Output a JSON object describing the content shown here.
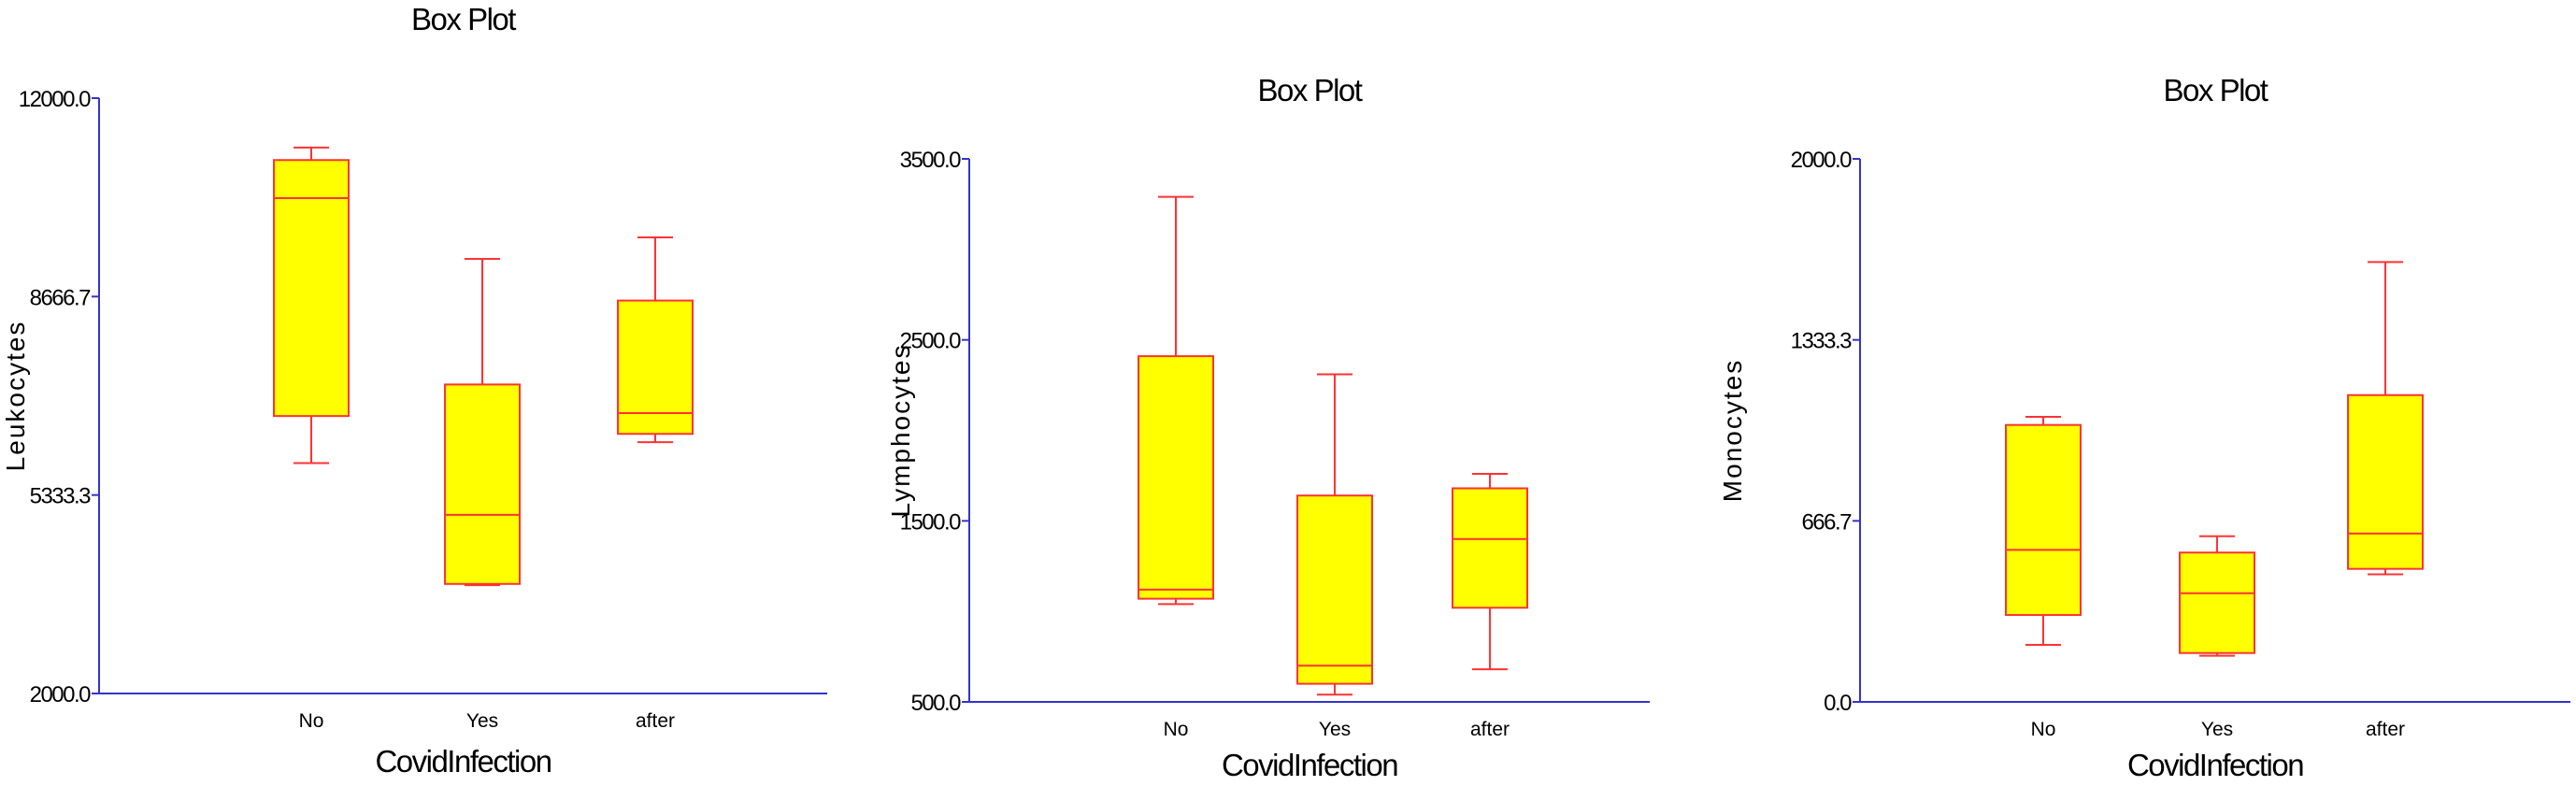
{
  "colors": {
    "axis": "#3333cc",
    "box_fill": "#ffff00",
    "box_stroke": "#ff3333",
    "text": "#000000"
  },
  "chart_data": [
    {
      "type": "box",
      "title": "Box Plot",
      "xlabel": "CovidInfection",
      "ylabel": "Leukocytes",
      "ylim": [
        2000.0,
        12000.0
      ],
      "yticks": [
        "12000.0",
        "8666.7",
        "5333.3",
        "2000.0"
      ],
      "categories": [
        "No",
        "Yes",
        "after"
      ],
      "boxes": [
        {
          "category": "No",
          "whisker_low": 5870,
          "q1": 6660,
          "median": 10320,
          "q3": 10960,
          "whisker_high": 11170
        },
        {
          "category": "Yes",
          "whisker_low": 3820,
          "q1": 3840,
          "median": 5000,
          "q3": 7190,
          "whisker_high": 9300
        },
        {
          "category": "after",
          "whisker_low": 6220,
          "q1": 6360,
          "median": 6710,
          "q3": 8600,
          "whisker_high": 9660
        }
      ],
      "grid": false
    },
    {
      "type": "box",
      "title": "Box Plot",
      "xlabel": "CovidInfection",
      "ylabel": "Lymphocytes",
      "ylim": [
        500.0,
        3500.0
      ],
      "yticks": [
        "3500.0",
        "2500.0",
        "1500.0",
        "500.0"
      ],
      "categories": [
        "No",
        "Yes",
        "after"
      ],
      "boxes": [
        {
          "category": "No",
          "whisker_low": 1040,
          "q1": 1070,
          "median": 1120,
          "q3": 2410,
          "whisker_high": 3290
        },
        {
          "category": "Yes",
          "whisker_low": 540,
          "q1": 600,
          "median": 700,
          "q3": 1640,
          "whisker_high": 2310
        },
        {
          "category": "after",
          "whisker_low": 680,
          "q1": 1020,
          "median": 1400,
          "q3": 1680,
          "whisker_high": 1760
        }
      ],
      "grid": false
    },
    {
      "type": "box",
      "title": "Box Plot",
      "xlabel": "CovidInfection",
      "ylabel": "Monocytes",
      "ylim": [
        0.0,
        2000.0
      ],
      "yticks": [
        "2000.0",
        "1333.3",
        "666.7",
        "0.0"
      ],
      "categories": [
        "No",
        "Yes",
        "after"
      ],
      "boxes": [
        {
          "category": "No",
          "whisker_low": 210,
          "q1": 320,
          "median": 560,
          "q3": 1020,
          "whisker_high": 1050
        },
        {
          "category": "Yes",
          "whisker_low": 170,
          "q1": 180,
          "median": 400,
          "q3": 550,
          "whisker_high": 610
        },
        {
          "category": "after",
          "whisker_low": 470,
          "q1": 490,
          "median": 620,
          "q3": 1130,
          "whisker_high": 1620
        }
      ],
      "grid": false
    }
  ]
}
